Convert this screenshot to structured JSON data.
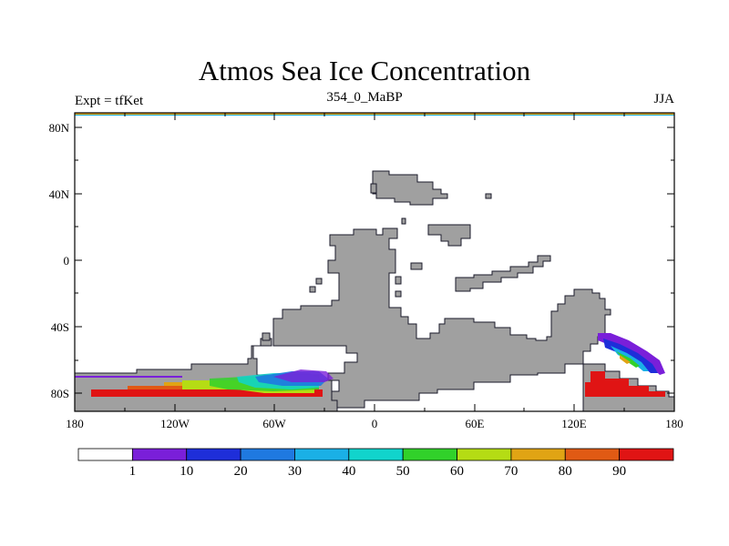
{
  "title": "Atmos Sea Ice Concentration",
  "subtitle_left": "Expt = tfKet",
  "subtitle_center": "354_0_MaBP",
  "subtitle_right": "JJA",
  "lat_labels": [
    "80N",
    "40N",
    "0",
    "40S",
    "80S"
  ],
  "lon_labels": [
    "180",
    "120W",
    "60W",
    "0",
    "60E",
    "120E",
    "180"
  ],
  "colorbar": {
    "colors": [
      "#ffffff",
      "#7a1fd9",
      "#1e2ed9",
      "#1f79e0",
      "#1ab0e6",
      "#11d4cc",
      "#31d12a",
      "#b5dc14",
      "#e0a414",
      "#e05a14",
      "#e01414"
    ],
    "labels": [
      "1",
      "10",
      "20",
      "30",
      "40",
      "50",
      "60",
      "70",
      "80",
      "90"
    ]
  },
  "colors": {
    "land": "#a0a0a0",
    "ice_high": "#e01414",
    "top_band": "#e0a414",
    "top_band2": "#1ab0e6"
  }
}
